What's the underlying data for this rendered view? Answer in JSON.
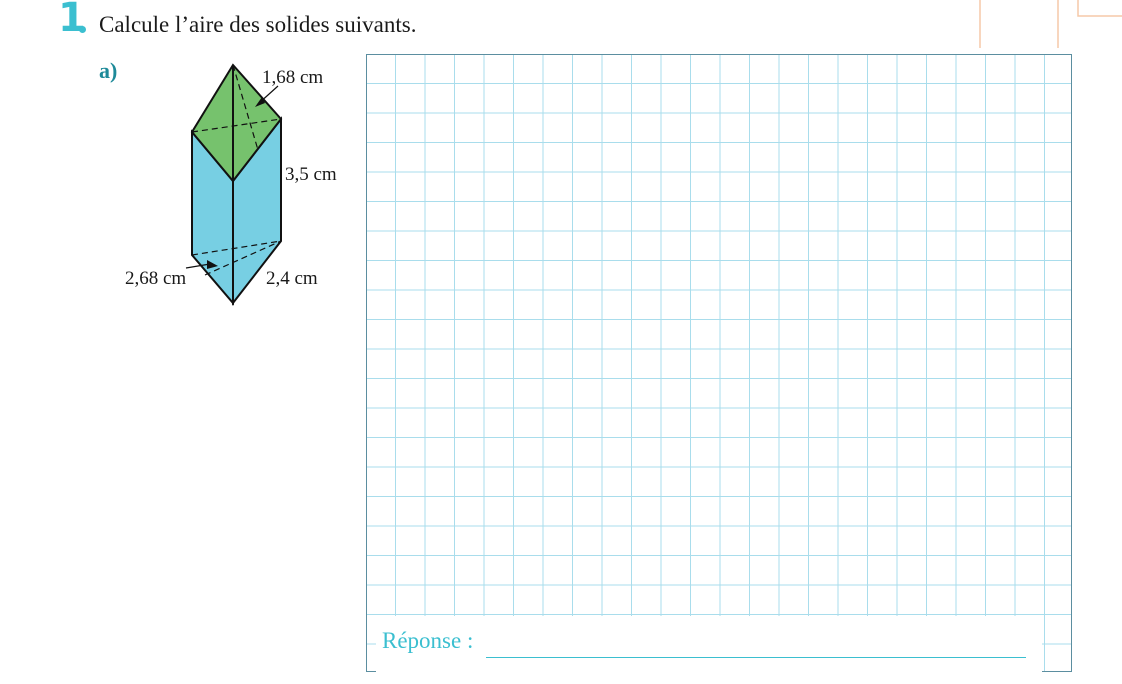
{
  "exercise": {
    "number": "1",
    "instruction": "Calcule l’aire des solides suivants."
  },
  "part": {
    "label": "a)"
  },
  "figure": {
    "dim_top": "1,68 cm",
    "dim_height": "3,5 cm",
    "dim_bottom_left": "2,68 cm",
    "dim_bottom_right": "2,4 cm",
    "colors": {
      "top_face": "#76c26d",
      "side_faces": "#77cfe3",
      "grid_line": "#a9ddec",
      "accent": "#3bbfd0"
    }
  },
  "answer": {
    "label": "Réponse :"
  }
}
